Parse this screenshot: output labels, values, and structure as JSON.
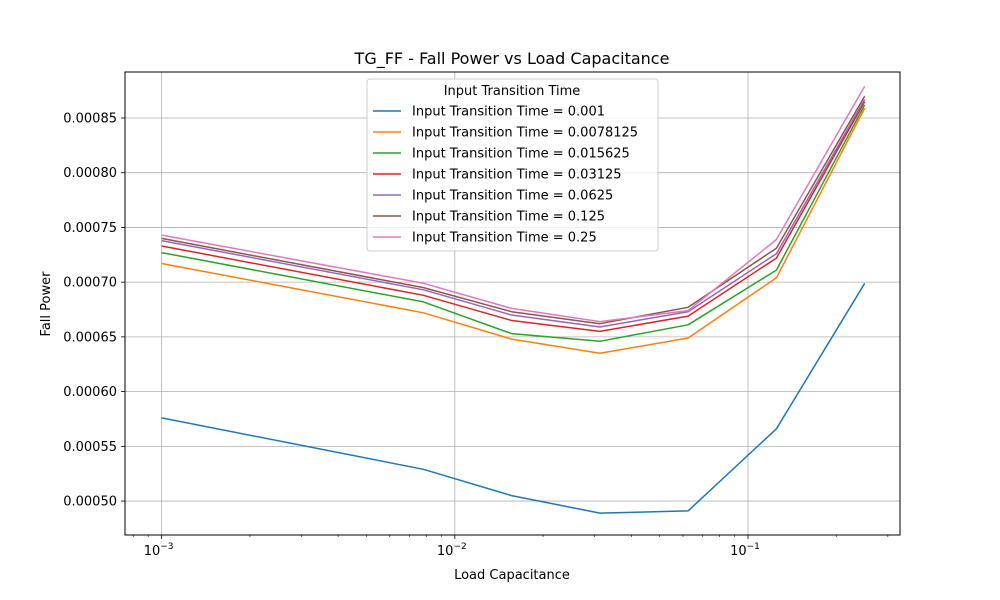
{
  "chart_data": {
    "type": "line",
    "title": "TG_FF - Fall Power vs Load Capacitance",
    "xlabel": "Load Capacitance",
    "ylabel": "Fall Power",
    "xscale": "log",
    "xlim": [
      0.00075,
      0.33
    ],
    "ylim": [
      0.000469,
      0.000892
    ],
    "grid": true,
    "legend": {
      "title": "Input Transition Time",
      "placement": "top-center"
    },
    "x_ticks": [
      {
        "value": 0.001,
        "base": "10",
        "exp": "−3"
      },
      {
        "value": 0.01,
        "base": "10",
        "exp": "−2"
      },
      {
        "value": 0.1,
        "base": "10",
        "exp": "−1"
      }
    ],
    "y_ticks": [
      "0.00050",
      "0.00055",
      "0.00060",
      "0.00065",
      "0.00070",
      "0.00075",
      "0.00080",
      "0.00085"
    ],
    "x": [
      0.001,
      0.0078125,
      0.015625,
      0.03125,
      0.0625,
      0.125,
      0.25
    ],
    "series": [
      {
        "name": "Input Transition Time = 0.001",
        "color": "#1f77b4",
        "values": [
          0.000576,
          0.000529,
          0.000505,
          0.000489,
          0.000491,
          0.000566,
          0.000699
        ]
      },
      {
        "name": "Input Transition Time = 0.0078125",
        "color": "#ff7f0e",
        "values": [
          0.000717,
          0.000672,
          0.000648,
          0.000635,
          0.000649,
          0.000704,
          0.000859
        ]
      },
      {
        "name": "Input Transition Time = 0.015625",
        "color": "#2ca02c",
        "values": [
          0.000727,
          0.000682,
          0.000653,
          0.000646,
          0.000661,
          0.000711,
          0.000862
        ]
      },
      {
        "name": "Input Transition Time = 0.03125",
        "color": "#d62728",
        "values": [
          0.000733,
          0.000688,
          0.000665,
          0.000655,
          0.000669,
          0.000722,
          0.000865
        ]
      },
      {
        "name": "Input Transition Time = 0.0625",
        "color": "#9467bd",
        "values": [
          0.000738,
          0.000693,
          0.00067,
          0.000659,
          0.000673,
          0.000726,
          0.000867
        ]
      },
      {
        "name": "Input Transition Time = 0.125",
        "color": "#8c564b",
        "values": [
          0.00074,
          0.000695,
          0.000673,
          0.000662,
          0.000677,
          0.000731,
          0.00087
        ]
      },
      {
        "name": "Input Transition Time = 0.25",
        "color": "#e377c2",
        "values": [
          0.000743,
          0.000699,
          0.000676,
          0.000664,
          0.000674,
          0.000739,
          0.000879
        ]
      }
    ]
  }
}
